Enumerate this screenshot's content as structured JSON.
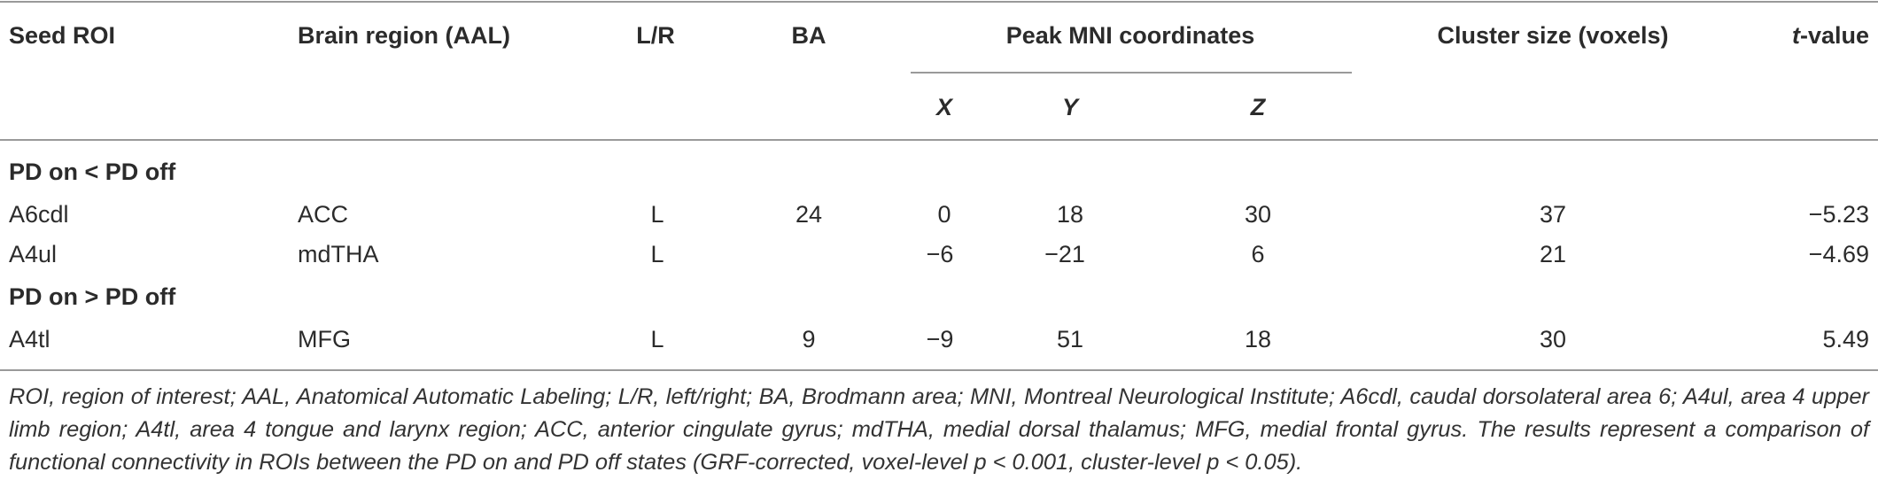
{
  "table": {
    "headers": {
      "seed_roi": "Seed ROI",
      "brain_region": "Brain region (AAL)",
      "lr": "L/R",
      "ba": "BA",
      "peak_mni": "Peak MNI coordinates",
      "cluster_size": "Cluster size (voxels)",
      "t_value_italic": "t",
      "t_value_rest": "-value",
      "x": "X",
      "y": "Y",
      "z": "Z"
    },
    "sections": [
      {
        "title": "PD on < PD off",
        "rows": [
          {
            "seed": "A6cdl",
            "region": "ACC",
            "lr": "L",
            "ba": "24",
            "x": "0",
            "y": "18",
            "z": "30",
            "cluster": "37",
            "t": "−5.23"
          },
          {
            "seed": "A4ul",
            "region": "mdTHA",
            "lr": "L",
            "ba": "",
            "x": "−6",
            "y": "−21",
            "z": "6",
            "cluster": "21",
            "t": "−4.69"
          }
        ]
      },
      {
        "title": "PD on > PD off",
        "rows": [
          {
            "seed": "A4tl",
            "region": "MFG",
            "lr": "L",
            "ba": "9",
            "x": "−9",
            "y": "51",
            "z": "18",
            "cluster": "30",
            "t": "5.49"
          }
        ]
      }
    ]
  },
  "footnote": "ROI, region of interest; AAL, Anatomical Automatic Labeling; L/R, left/right; BA, Brodmann area; MNI, Montreal Neurological Institute; A6cdl, caudal dorsolateral area 6; A4ul, area 4 upper limb region; A4tl, area 4 tongue and larynx region; ACC, anterior cingulate gyrus; mdTHA, medial dorsal thalamus; MFG, medial frontal gyrus. The results represent a comparison of functional connectivity in ROIs between the PD on and PD off states (GRF-corrected, voxel-level p < 0.001, cluster-level p < 0.05)."
}
